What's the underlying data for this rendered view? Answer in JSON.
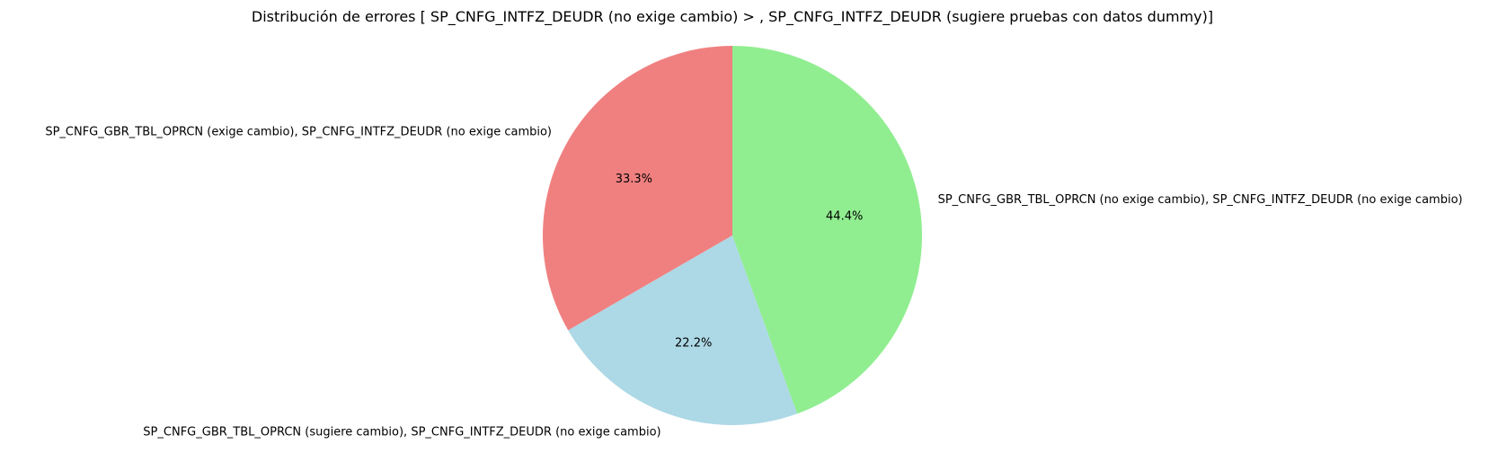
{
  "chart_data": {
    "type": "pie",
    "title": "Distribución de errores [ SP_CNFG_INTFZ_DEUDR  (no exige cambio) > , SP_CNFG_INTFZ_DEUDR (sugiere pruebas con datos dummy)]",
    "start_angle_deg": 90,
    "direction": "counterclockwise",
    "slices": [
      {
        "label": "SP_CNFG_GBR_TBL_OPRCN (exige cambio), SP_CNFG_INTFZ_DEUDR (no exige cambio)",
        "value": 33.3,
        "pct_text": "33.3%",
        "color": "#f08080"
      },
      {
        "label": "SP_CNFG_GBR_TBL_OPRCN (sugiere cambio), SP_CNFG_INTFZ_DEUDR (no exige cambio)",
        "value": 22.2,
        "pct_text": "22.2%",
        "color": "#add8e6"
      },
      {
        "label": "SP_CNFG_GBR_TBL_OPRCN (no exige cambio), SP_CNFG_INTFZ_DEUDR (no exige cambio)",
        "value": 44.4,
        "pct_text": "44.4%",
        "color": "#90ee90"
      }
    ]
  }
}
